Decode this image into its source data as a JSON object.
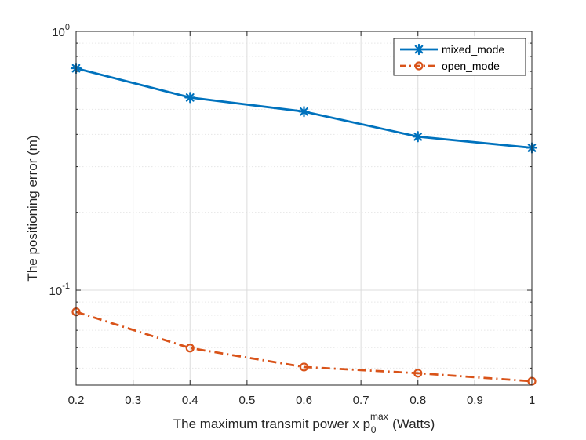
{
  "chart_data": {
    "type": "line",
    "title": "",
    "xlabel": {
      "prefix": "The maximum transmit power x p",
      "subscript": "0",
      "superscript": "max",
      "suffix": " (Watts)"
    },
    "ylabel": "The positioning error (m)",
    "yscale": "log",
    "xlim": [
      0.2,
      1.0
    ],
    "ylim": [
      0.043,
      1.0
    ],
    "grid": true,
    "x": [
      0.2,
      0.4,
      0.6,
      0.8,
      1.0
    ],
    "xticks": [
      {
        "value": 0.2,
        "label": "0.2"
      },
      {
        "value": 0.3,
        "label": "0.3"
      },
      {
        "value": 0.4,
        "label": "0.4"
      },
      {
        "value": 0.5,
        "label": "0.5"
      },
      {
        "value": 0.6,
        "label": "0.6"
      },
      {
        "value": 0.7,
        "label": "0.7"
      },
      {
        "value": 0.8,
        "label": "0.8"
      },
      {
        "value": 0.9,
        "label": "0.9"
      },
      {
        "value": 1.0,
        "label": "1"
      }
    ],
    "yticks": [
      {
        "value": 0.1,
        "base": "10",
        "exp": "-1"
      },
      {
        "value": 1.0,
        "base": "10",
        "exp": "0"
      }
    ],
    "series": [
      {
        "name": "mixed_mode",
        "color": "#0072BD",
        "marker": "asterisk",
        "linestyle": "solid",
        "values": [
          0.72,
          0.555,
          0.49,
          0.392,
          0.355
        ]
      },
      {
        "name": "open_mode",
        "color": "#D95319",
        "marker": "circle",
        "linestyle": "dashdot",
        "values": [
          0.0825,
          0.0598,
          0.0505,
          0.0478,
          0.0445
        ]
      }
    ],
    "legend": {
      "position": "top-right",
      "entries": [
        "mixed_mode",
        "open_mode"
      ]
    }
  }
}
